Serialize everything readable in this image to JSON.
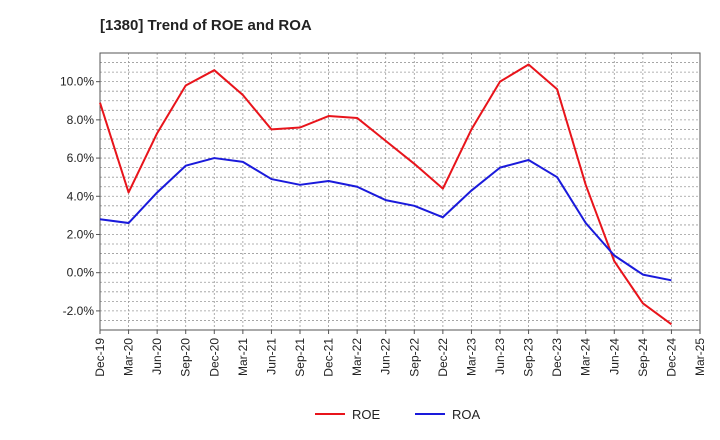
{
  "chart_data": {
    "type": "line",
    "title": "[1380]  Trend of ROE and ROA",
    "xlabel": "",
    "ylabel": "",
    "categories": [
      "Dec-19",
      "Mar-20",
      "Jun-20",
      "Sep-20",
      "Dec-20",
      "Mar-21",
      "Jun-21",
      "Sep-21",
      "Dec-21",
      "Mar-22",
      "Jun-22",
      "Sep-22",
      "Dec-22",
      "Mar-23",
      "Jun-23",
      "Sep-23",
      "Dec-23",
      "Mar-24",
      "Jun-24",
      "Sep-24",
      "Dec-24",
      "Mar-25"
    ],
    "ylim": [
      -3.0,
      11.5
    ],
    "yticks": [
      -2.0,
      0.0,
      2.0,
      4.0,
      6.0,
      8.0,
      10.0
    ],
    "ytick_labels": [
      "-2.0%",
      "0.0%",
      "2.0%",
      "4.0%",
      "6.0%",
      "8.0%",
      "10.0%"
    ],
    "grid": true,
    "legend_position": "bottom-center",
    "series": [
      {
        "name": "ROE",
        "color": "#e8141b",
        "values": [
          8.9,
          4.2,
          7.3,
          9.8,
          10.6,
          9.3,
          7.5,
          7.6,
          8.2,
          8.1,
          6.9,
          5.7,
          4.4,
          7.5,
          10.0,
          10.9,
          9.6,
          4.6,
          0.6,
          -1.6,
          -2.7,
          null
        ]
      },
      {
        "name": "ROA",
        "color": "#1a1adb",
        "values": [
          2.8,
          2.6,
          4.2,
          5.6,
          6.0,
          5.8,
          4.9,
          4.6,
          4.8,
          4.5,
          3.8,
          3.5,
          2.9,
          4.3,
          5.5,
          5.9,
          5.0,
          2.6,
          0.9,
          -0.1,
          -0.4,
          null
        ]
      }
    ]
  }
}
